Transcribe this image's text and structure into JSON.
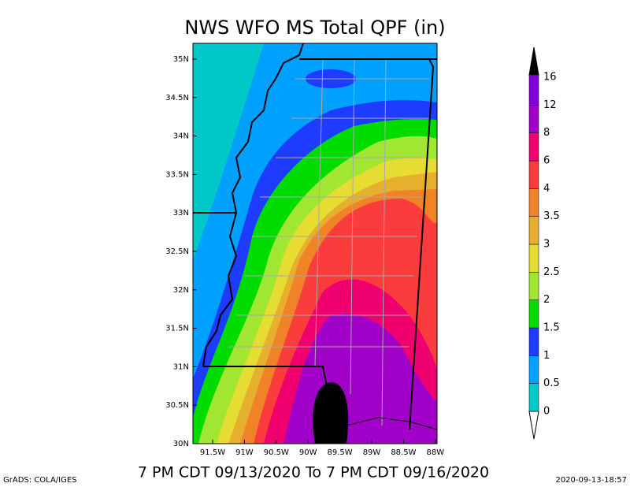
{
  "title": "NWS WFO MS Total QPF (in)",
  "subtitle": "7 PM CDT 09/13/2020 To 7 PM CDT 09/16/2020",
  "credit": "GrADS: COLA/IGES",
  "timestamp": "2020-09-13-18:57",
  "lat_labels": [
    "35N",
    "34.5N",
    "34N",
    "33.5N",
    "33N",
    "32.5N",
    "32N",
    "31.5N",
    "31N",
    "30.5N",
    "30N"
  ],
  "lon_labels": [
    "91.5W",
    "91W",
    "90.5W",
    "90W",
    "89.5W",
    "89W",
    "88.5W",
    "88W"
  ],
  "colorbar": {
    "labels": [
      "0",
      "0.5",
      "1",
      "1.5",
      "2",
      "2.5",
      "3",
      "3.5",
      "4",
      "6",
      "8",
      "12",
      "16"
    ],
    "colors": [
      "#00c8c8",
      "#00a0ff",
      "#1e3cff",
      "#00dc00",
      "#a0e632",
      "#e6dc32",
      "#e6af2d",
      "#f08228",
      "#fa3c3c",
      "#f0006e",
      "#a000c8",
      "#8200dc"
    ]
  }
}
